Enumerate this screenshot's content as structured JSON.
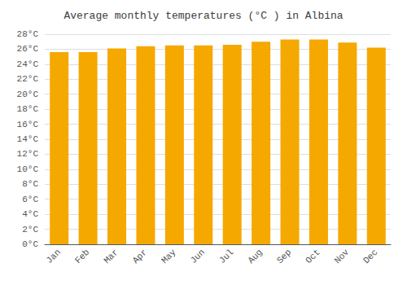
{
  "chart_data": {
    "type": "bar",
    "title": "Average monthly temperatures (°C ) in Albina",
    "categories": [
      "Jan",
      "Feb",
      "Mar",
      "Apr",
      "May",
      "Jun",
      "Jul",
      "Aug",
      "Sep",
      "Oct",
      "Nov",
      "Dec"
    ],
    "values": [
      25.6,
      25.6,
      26.1,
      26.4,
      26.5,
      26.5,
      26.6,
      27.0,
      27.3,
      27.3,
      26.9,
      26.2
    ],
    "color": "#F5A800",
    "ylim": [
      0,
      28
    ],
    "yticks": [
      {
        "value": 0,
        "label": "0°C"
      },
      {
        "value": 2,
        "label": "2°C"
      },
      {
        "value": 4,
        "label": "4°C"
      },
      {
        "value": 6,
        "label": "6°C"
      },
      {
        "value": 8,
        "label": "8°C"
      },
      {
        "value": 10,
        "label": "10°C"
      },
      {
        "value": 12,
        "label": "12°C"
      },
      {
        "value": 14,
        "label": "14°C"
      },
      {
        "value": 16,
        "label": "16°C"
      },
      {
        "value": 18,
        "label": "18°C"
      },
      {
        "value": 20,
        "label": "20°C"
      },
      {
        "value": 22,
        "label": "22°C"
      },
      {
        "value": 24,
        "label": "24°C"
      },
      {
        "value": 26,
        "label": "26°C"
      },
      {
        "value": 28,
        "label": "28°C"
      }
    ],
    "grid": true
  }
}
